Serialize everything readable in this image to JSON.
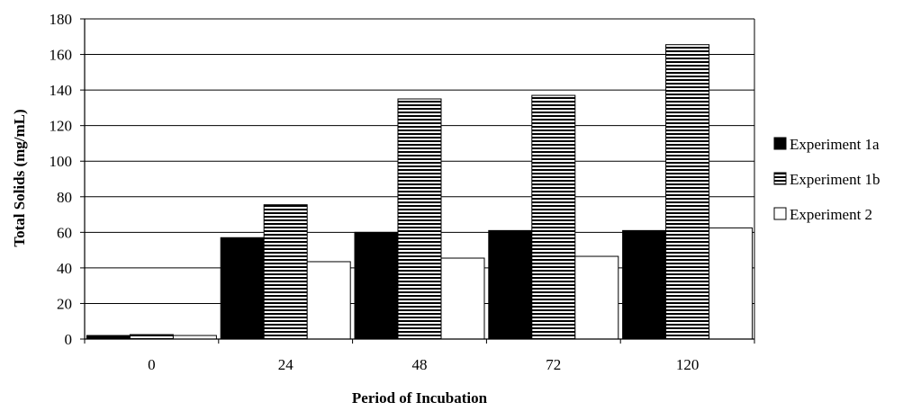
{
  "chart_data": {
    "type": "bar",
    "categories": [
      "0",
      "24",
      "48",
      "72",
      "120"
    ],
    "series": [
      {
        "name": "Experiment 1a",
        "values": [
          2,
          57,
          60,
          61,
          61
        ],
        "fill": "solid-black"
      },
      {
        "name": "Experiment 1b",
        "values": [
          2.5,
          75.5,
          135,
          137,
          165.5
        ],
        "fill": "horizontal-stripes"
      },
      {
        "name": "Experiment 2",
        "values": [
          2,
          43.5,
          45.5,
          46.5,
          62.5
        ],
        "fill": "white"
      }
    ],
    "xlabel": "Period of Incubation",
    "ylabel": "Total Solids (mg/mL)",
    "ylim": [
      0,
      180
    ],
    "yticks": [
      "0",
      "20",
      "40",
      "60",
      "80",
      "100",
      "120",
      "140",
      "160",
      "180"
    ],
    "grid": true,
    "legend_position": "right"
  }
}
